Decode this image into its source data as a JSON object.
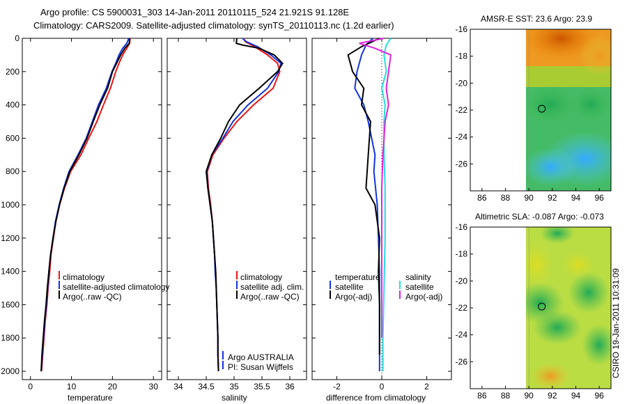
{
  "header": {
    "title_line1": "Argo profile: CS 5900031_303 14-Jan-2011 20110115_524 21.921S 91.128E",
    "title_line2": "Climatology: CARS2009. Satellite-adjusted climatology: synTS_20110113.nc (1.2d earlier)"
  },
  "colors": {
    "climatology": "#ee1111",
    "satellite": "#1133dd",
    "argo": "#000000",
    "sat_salinity": "#22dddd",
    "argo_salinity": "#dd22dd"
  },
  "chart_data": [
    {
      "id": "temperature",
      "type": "line",
      "xlabel": "temperature",
      "xlim": [
        -2,
        32
      ],
      "ylim": [
        2050,
        0
      ],
      "xticks": [
        0,
        10,
        20,
        30
      ],
      "yticks": [
        0,
        200,
        400,
        600,
        800,
        1000,
        1200,
        1400,
        1600,
        1800,
        2000
      ],
      "legend": [
        "climatology",
        "satellite-adjusted climatology",
        "Argo(..raw -QC)"
      ],
      "series": [
        {
          "name": "climatology",
          "color": "#ee1111",
          "points": [
            [
              24.3,
              0
            ],
            [
              24.2,
              30
            ],
            [
              23.5,
              60
            ],
            [
              22.5,
              100
            ],
            [
              21.6,
              150
            ],
            [
              20.8,
              200
            ],
            [
              19.5,
              300
            ],
            [
              17.8,
              400
            ],
            [
              16.2,
              500
            ],
            [
              14.2,
              600
            ],
            [
              12.3,
              700
            ],
            [
              9.8,
              800
            ],
            [
              8.3,
              900
            ],
            [
              7.1,
              1000
            ],
            [
              6.2,
              1100
            ],
            [
              5.6,
              1200
            ],
            [
              5.0,
              1300
            ],
            [
              4.7,
              1400
            ],
            [
              4.3,
              1500
            ],
            [
              4.0,
              1600
            ],
            [
              3.6,
              1700
            ],
            [
              3.3,
              1800
            ],
            [
              3.0,
              1900
            ],
            [
              2.7,
              2000
            ]
          ]
        },
        {
          "name": "satellite-adjusted climatology",
          "color": "#1133dd",
          "points": [
            [
              24.0,
              0
            ],
            [
              23.5,
              30
            ],
            [
              22.5,
              60
            ],
            [
              21.6,
              100
            ],
            [
              20.8,
              150
            ],
            [
              19.9,
              200
            ],
            [
              18.5,
              300
            ],
            [
              16.6,
              400
            ],
            [
              15.1,
              500
            ],
            [
              13.6,
              600
            ],
            [
              11.6,
              700
            ],
            [
              9.4,
              800
            ],
            [
              8.1,
              900
            ],
            [
              7.0,
              1000
            ],
            [
              6.1,
              1100
            ],
            [
              5.5,
              1200
            ],
            [
              4.9,
              1300
            ],
            [
              4.5,
              1400
            ],
            [
              4.2,
              1500
            ],
            [
              3.9,
              1600
            ],
            [
              3.5,
              1700
            ],
            [
              3.2,
              1800
            ],
            [
              2.9,
              1900
            ],
            [
              2.6,
              2000
            ]
          ]
        },
        {
          "name": "Argo(..raw -QC)",
          "color": "#000000",
          "points": [
            [
              24.2,
              0
            ],
            [
              24.1,
              30
            ],
            [
              23.0,
              60
            ],
            [
              22.0,
              100
            ],
            [
              21.0,
              150
            ],
            [
              20.0,
              200
            ],
            [
              18.8,
              300
            ],
            [
              16.9,
              400
            ],
            [
              15.3,
              500
            ],
            [
              13.8,
              600
            ],
            [
              11.8,
              700
            ],
            [
              9.6,
              800
            ],
            [
              8.2,
              900
            ],
            [
              7.1,
              1000
            ],
            [
              6.2,
              1100
            ],
            [
              5.5,
              1200
            ],
            [
              4.9,
              1300
            ],
            [
              4.5,
              1400
            ],
            [
              4.1,
              1500
            ],
            [
              3.8,
              1600
            ],
            [
              3.4,
              1700
            ],
            [
              3.1,
              1800
            ],
            [
              2.8,
              1900
            ],
            [
              2.6,
              2000
            ]
          ]
        }
      ]
    },
    {
      "id": "salinity",
      "type": "line",
      "xlabel": "salinity",
      "xlim": [
        33.8,
        36.3
      ],
      "ylim": [
        2050,
        0
      ],
      "xticks": [
        34,
        34.5,
        35,
        35.5,
        36
      ],
      "xtick_labels": [
        "34",
        "34.5",
        "35",
        "35.5",
        "36"
      ],
      "legend": [
        "climatology",
        "satellite adj. clim.",
        "Argo(..raw -QC)"
      ],
      "annotation": [
        "Argo AUSTRALIA",
        "PI: Susan Wijffels"
      ],
      "series": [
        {
          "name": "climatology",
          "color": "#ee1111",
          "points": [
            [
              35.17,
              0
            ],
            [
              35.2,
              20
            ],
            [
              35.37,
              50
            ],
            [
              35.6,
              100
            ],
            [
              35.78,
              150
            ],
            [
              35.82,
              200
            ],
            [
              35.7,
              300
            ],
            [
              35.35,
              400
            ],
            [
              35.05,
              500
            ],
            [
              34.82,
              600
            ],
            [
              34.62,
              700
            ],
            [
              34.52,
              800
            ],
            [
              34.54,
              900
            ],
            [
              34.58,
              1000
            ],
            [
              34.61,
              1100
            ],
            [
              34.63,
              1200
            ],
            [
              34.65,
              1300
            ],
            [
              34.67,
              1400
            ],
            [
              34.68,
              1500
            ],
            [
              34.69,
              1600
            ],
            [
              34.7,
              1700
            ],
            [
              34.71,
              1800
            ],
            [
              34.71,
              1900
            ],
            [
              34.72,
              2000
            ]
          ]
        },
        {
          "name": "satellite adj. clim.",
          "color": "#1133dd",
          "points": [
            [
              35.15,
              0
            ],
            [
              35.22,
              20
            ],
            [
              35.42,
              50
            ],
            [
              35.66,
              100
            ],
            [
              35.84,
              150
            ],
            [
              35.8,
              200
            ],
            [
              35.6,
              300
            ],
            [
              35.25,
              400
            ],
            [
              34.98,
              500
            ],
            [
              34.8,
              600
            ],
            [
              34.6,
              700
            ],
            [
              34.51,
              800
            ],
            [
              34.53,
              900
            ],
            [
              34.57,
              1000
            ],
            [
              34.61,
              1100
            ],
            [
              34.63,
              1200
            ],
            [
              34.65,
              1300
            ],
            [
              34.66,
              1400
            ],
            [
              34.68,
              1500
            ],
            [
              34.69,
              1600
            ],
            [
              34.7,
              1700
            ],
            [
              34.71,
              1800
            ],
            [
              34.71,
              1900
            ],
            [
              34.72,
              2000
            ]
          ]
        },
        {
          "name": "Argo(..raw -QC)",
          "color": "#000000",
          "points": [
            [
              35.05,
              0
            ],
            [
              35.04,
              30
            ],
            [
              35.15,
              40
            ],
            [
              35.45,
              60
            ],
            [
              35.72,
              100
            ],
            [
              35.87,
              150
            ],
            [
              35.78,
              200
            ],
            [
              35.45,
              300
            ],
            [
              35.1,
              400
            ],
            [
              34.9,
              500
            ],
            [
              34.76,
              600
            ],
            [
              34.6,
              700
            ],
            [
              34.5,
              800
            ],
            [
              34.53,
              900
            ],
            [
              34.57,
              1000
            ],
            [
              34.61,
              1100
            ],
            [
              34.63,
              1200
            ],
            [
              34.65,
              1300
            ],
            [
              34.67,
              1400
            ],
            [
              34.68,
              1500
            ],
            [
              34.69,
              1600
            ],
            [
              34.7,
              1700
            ],
            [
              34.71,
              1800
            ],
            [
              34.71,
              1900
            ],
            [
              34.72,
              2000
            ]
          ]
        }
      ]
    },
    {
      "id": "difference",
      "type": "line",
      "xlabel": "difference from climatology",
      "xlim": [
        -3.1,
        3.1
      ],
      "ylim": [
        2050,
        0
      ],
      "xticks": [
        -2,
        0,
        2
      ],
      "legend_left_title": "temperature",
      "legend_left": [
        "satellite",
        "Argo(-adj)"
      ],
      "legend_right_title": "salinity",
      "legend_right": [
        "satellite",
        "Argo(-adj)"
      ],
      "series": [
        {
          "name": "temperature satellite",
          "color": "#1133dd",
          "points": [
            [
              -0.4,
              0
            ],
            [
              -0.7,
              40
            ],
            [
              -0.9,
              100
            ],
            [
              -1.1,
              200
            ],
            [
              -1.2,
              300
            ],
            [
              -0.8,
              400
            ],
            [
              -0.6,
              500
            ],
            [
              -0.3,
              700
            ],
            [
              -0.35,
              800
            ],
            [
              -0.2,
              1000
            ],
            [
              -0.15,
              1200
            ],
            [
              -0.1,
              1400
            ],
            [
              -0.1,
              1600
            ],
            [
              -0.1,
              1800
            ],
            [
              -0.1,
              2000
            ]
          ]
        },
        {
          "name": "temperature Argo(-adj)",
          "color": "#000000",
          "points": [
            [
              -0.1,
              0
            ],
            [
              -0.9,
              50
            ],
            [
              -1.5,
              100
            ],
            [
              -1.3,
              200
            ],
            [
              -0.8,
              300
            ],
            [
              -0.9,
              400
            ],
            [
              -0.5,
              500
            ],
            [
              -0.6,
              700
            ],
            [
              -0.7,
              900
            ],
            [
              -0.3,
              1000
            ],
            [
              -0.1,
              1200
            ],
            [
              -0.15,
              1400
            ],
            [
              -0.1,
              1600
            ],
            [
              -0.1,
              1800
            ],
            [
              -0.1,
              1900
            ]
          ]
        },
        {
          "name": "salinity satellite",
          "color": "#22dddd",
          "points": [
            [
              0.4,
              0
            ],
            [
              0.2,
              40
            ],
            [
              0.1,
              100
            ],
            [
              0.2,
              200
            ],
            [
              0.0,
              300
            ],
            [
              0.15,
              400
            ],
            [
              0.1,
              500
            ],
            [
              0.1,
              700
            ],
            [
              0.15,
              900
            ],
            [
              0.15,
              1200
            ],
            [
              0.1,
              1500
            ],
            [
              0.05,
              1800
            ],
            [
              0.05,
              2000
            ]
          ]
        },
        {
          "name": "salinity Argo(-adj)",
          "color": "#dd22dd",
          "points": [
            [
              0.1,
              0
            ],
            [
              -1.0,
              30
            ],
            [
              -0.3,
              60
            ],
            [
              0.4,
              100
            ],
            [
              0.3,
              200
            ],
            [
              0.2,
              300
            ],
            [
              0.3,
              400
            ],
            [
              0.15,
              500
            ],
            [
              0.05,
              700
            ],
            [
              0.0,
              900
            ],
            [
              0.0,
              1200
            ],
            [
              0.0,
              1500
            ],
            [
              0.0,
              1800
            ]
          ]
        }
      ]
    },
    {
      "id": "sst-map",
      "type": "heatmap",
      "title": "AMSR-E SST: 23.6 Argo: 23.9",
      "xlim": [
        85,
        97
      ],
      "ylim": [
        -28,
        -16
      ],
      "xticks": [
        86,
        88,
        90,
        92,
        94,
        96
      ],
      "yticks": [
        -16,
        -18,
        -20,
        -22,
        -24,
        -26
      ],
      "data_extent_x": [
        90,
        97
      ],
      "marker": [
        91.1,
        -21.9
      ]
    },
    {
      "id": "sla-map",
      "type": "heatmap",
      "title": "Altimetric SLA: -0.087 Argo: -0.073",
      "xlim": [
        85,
        97
      ],
      "ylim": [
        -28,
        -16
      ],
      "xticks": [
        86,
        88,
        90,
        92,
        94,
        96
      ],
      "yticks": [
        -16,
        -18,
        -20,
        -22,
        -24,
        -26
      ],
      "data_extent_x": [
        90,
        97
      ],
      "marker": [
        91.1,
        -21.9
      ]
    }
  ],
  "footer": {
    "stamp": "CSIRO 19-Jan-2011 10:31:09"
  }
}
